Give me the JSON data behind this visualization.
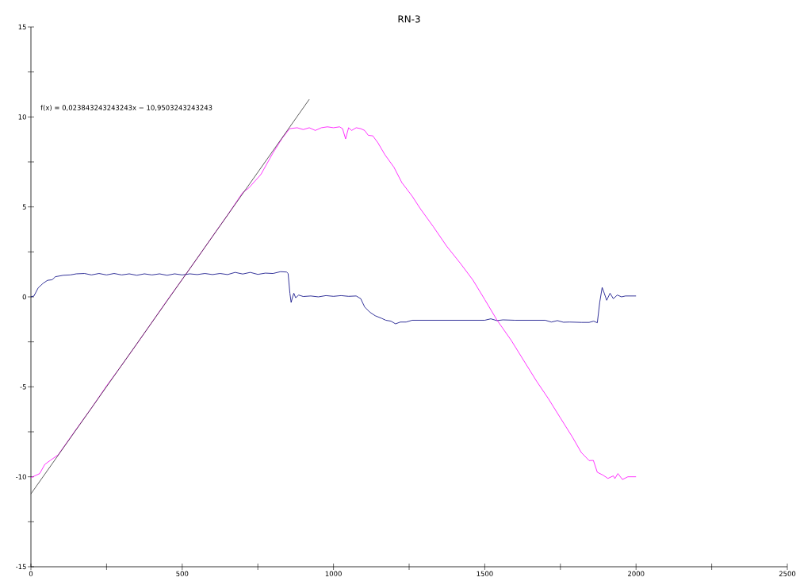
{
  "chart_data": {
    "type": "line",
    "title": "RN-3",
    "marker": "none",
    "xlim": [
      0,
      2500
    ],
    "ylim": [
      -15,
      15
    ],
    "xticks": [
      0,
      {
        "value": 250,
        "label": null
      },
      500,
      {
        "value": 750,
        "label": null
      },
      1000,
      {
        "value": 1250,
        "label": null
      },
      1500,
      {
        "value": 1750,
        "label": null
      },
      2000,
      {
        "value": 2250,
        "label": null
      },
      2500
    ],
    "yticks": [
      -15,
      {
        "value": -12.5,
        "label": null
      },
      -10,
      {
        "value": -7.5,
        "label": null
      },
      -5,
      {
        "value": -2.5,
        "label": null
      },
      0,
      {
        "value": 2.5,
        "label": null
      },
      5,
      {
        "value": 7.5,
        "label": null
      },
      10,
      {
        "value": 12.5,
        "label": null
      },
      15
    ],
    "annotations": [
      "f(x) = 0,023843243243243x − 10,9503243243243"
    ],
    "series": [
      {
        "color": "#000080",
        "x": [
          0,
          10,
          24,
          40,
          55,
          70,
          81,
          107,
          130,
          150,
          177,
          200,
          225,
          250,
          275,
          300,
          325,
          350,
          375,
          400,
          425,
          450,
          475,
          500,
          525,
          550,
          575,
          600,
          625,
          650,
          675,
          700,
          725,
          750,
          775,
          800,
          825,
          845,
          850,
          856,
          860,
          865,
          869,
          875,
          885,
          900,
          925,
          950,
          975,
          1000,
          1025,
          1050,
          1075,
          1090,
          1103,
          1120,
          1138,
          1160,
          1173,
          1190,
          1205,
          1221,
          1240,
          1260,
          1287,
          1300,
          1350,
          1400,
          1450,
          1500,
          1520,
          1540,
          1560,
          1600,
          1650,
          1700,
          1720,
          1740,
          1760,
          1780,
          1820,
          1845,
          1860,
          1872,
          1880,
          1888,
          1895,
          1903,
          1914,
          1925,
          1938,
          1952,
          1965,
          1980,
          2000
        ],
        "values": [
          0.0,
          0.05,
          0.5,
          0.75,
          0.92,
          0.95,
          1.12,
          1.2,
          1.22,
          1.28,
          1.3,
          1.22,
          1.3,
          1.22,
          1.3,
          1.22,
          1.28,
          1.2,
          1.28,
          1.22,
          1.28,
          1.2,
          1.28,
          1.22,
          1.28,
          1.24,
          1.3,
          1.24,
          1.3,
          1.24,
          1.36,
          1.27,
          1.36,
          1.25,
          1.32,
          1.3,
          1.4,
          1.38,
          1.3,
          0.2,
          -0.31,
          0.0,
          0.2,
          -0.05,
          0.1,
          0.02,
          0.05,
          0.0,
          0.07,
          0.03,
          0.07,
          0.03,
          0.05,
          -0.1,
          -0.56,
          -0.85,
          -1.05,
          -1.2,
          -1.3,
          -1.35,
          -1.5,
          -1.4,
          -1.4,
          -1.3,
          -1.3,
          -1.3,
          -1.3,
          -1.3,
          -1.3,
          -1.3,
          -1.22,
          -1.32,
          -1.28,
          -1.3,
          -1.3,
          -1.3,
          -1.4,
          -1.32,
          -1.41,
          -1.4,
          -1.42,
          -1.42,
          -1.35,
          -1.44,
          -0.3,
          0.52,
          0.2,
          -0.19,
          0.2,
          -0.1,
          0.1,
          0.0,
          0.05,
          0.05,
          0.05
        ]
      },
      {
        "color": "#ff00ff",
        "x": [
          0,
          29,
          46,
          64,
          90,
          150,
          200,
          250,
          300,
          350,
          400,
          450,
          500,
          550,
          600,
          650,
          700,
          720,
          760,
          800,
          830,
          855,
          880,
          900,
          920,
          940,
          960,
          980,
          1000,
          1020,
          1030,
          1040,
          1050,
          1060,
          1075,
          1090,
          1103,
          1115,
          1130,
          1147,
          1170,
          1200,
          1226,
          1260,
          1287,
          1330,
          1374,
          1420,
          1461,
          1500,
          1540,
          1588,
          1620,
          1671,
          1710,
          1750,
          1790,
          1819,
          1845,
          1859,
          1872,
          1890,
          1907,
          1925,
          1930,
          1940,
          1955,
          1973,
          2000
        ],
        "values": [
          -10.05,
          -9.82,
          -9.31,
          -9.09,
          -8.78,
          -7.35,
          -6.18,
          -4.95,
          -3.8,
          -2.62,
          -1.41,
          -0.2,
          0.97,
          2.15,
          3.36,
          4.55,
          5.8,
          6.05,
          6.8,
          8.0,
          8.8,
          9.35,
          9.4,
          9.3,
          9.4,
          9.25,
          9.4,
          9.45,
          9.4,
          9.45,
          9.35,
          8.78,
          9.4,
          9.25,
          9.4,
          9.35,
          9.25,
          8.98,
          8.95,
          8.56,
          7.9,
          7.2,
          6.35,
          5.6,
          4.9,
          3.9,
          2.82,
          1.85,
          0.93,
          -0.15,
          -1.28,
          -2.43,
          -3.3,
          -4.68,
          -5.65,
          -6.73,
          -7.8,
          -8.65,
          -9.1,
          -9.09,
          -9.75,
          -9.9,
          -10.09,
          -9.95,
          -10.1,
          -9.82,
          -10.15,
          -10.0,
          -10.0
        ]
      },
      {
        "color": "#333333",
        "x": [
          0,
          920
        ],
        "values": [
          -10.95,
          10.98
        ]
      }
    ]
  }
}
